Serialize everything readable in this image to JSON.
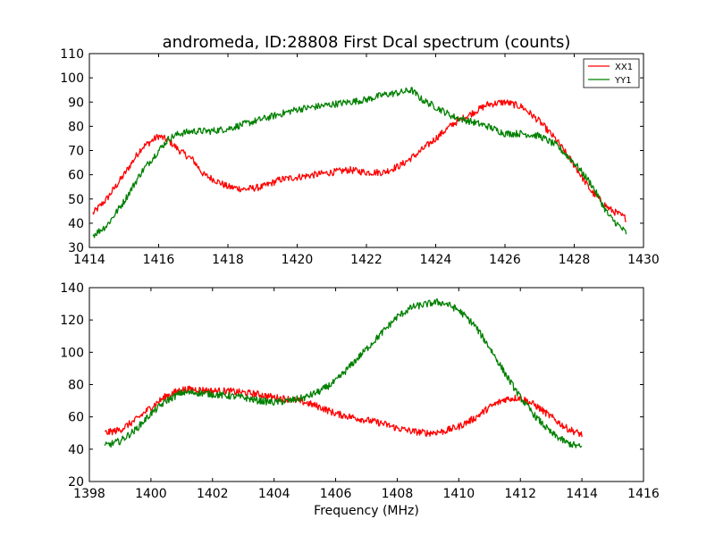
{
  "title": "andromeda, ID:28808 First Dcal spectrum (counts)",
  "chart_data": [
    {
      "type": "line",
      "title": "andromeda, ID:28808 First Dcal spectrum (counts)",
      "xlabel": "",
      "ylabel": "",
      "xlim": [
        1414,
        1430
      ],
      "ylim": [
        30,
        110
      ],
      "xticks": [
        "1414",
        "1416",
        "1418",
        "1420",
        "1422",
        "1424",
        "1426",
        "1428",
        "1430"
      ],
      "yticks": [
        "30",
        "40",
        "50",
        "60",
        "70",
        "80",
        "90",
        "100",
        "110"
      ],
      "grid": false,
      "legend": "top-right",
      "series": [
        {
          "name": "XX1",
          "color": "#ff0000",
          "x": [
            1414.1,
            1414.5,
            1415.0,
            1415.5,
            1416.0,
            1416.3,
            1416.6,
            1417.0,
            1417.3,
            1417.6,
            1418.0,
            1418.5,
            1419.0,
            1419.5,
            1420.0,
            1420.5,
            1421.0,
            1421.5,
            1422.0,
            1422.5,
            1423.0,
            1423.5,
            1424.0,
            1424.5,
            1425.0,
            1425.5,
            1426.0,
            1426.5,
            1427.0,
            1427.5,
            1428.0,
            1428.5,
            1429.0,
            1429.5
          ],
          "y": [
            44,
            50,
            60,
            71,
            76,
            74,
            70,
            66,
            60,
            58,
            55,
            54,
            55,
            58,
            59,
            60,
            61,
            62,
            61,
            61,
            64,
            69,
            75,
            81,
            85,
            89,
            90,
            88,
            82,
            74,
            64,
            53,
            46,
            42
          ]
        },
        {
          "name": "YY1",
          "color": "#008000",
          "x": [
            1414.1,
            1414.5,
            1415.0,
            1415.5,
            1416.0,
            1416.3,
            1416.6,
            1417.0,
            1417.5,
            1418.0,
            1418.5,
            1419.0,
            1419.5,
            1420.0,
            1420.5,
            1421.0,
            1421.5,
            1422.0,
            1422.5,
            1423.0,
            1423.3,
            1423.6,
            1424.0,
            1424.5,
            1425.0,
            1425.5,
            1426.0,
            1426.5,
            1427.0,
            1427.5,
            1428.0,
            1428.5,
            1429.0,
            1429.5
          ],
          "y": [
            35,
            39,
            49,
            61,
            70,
            75,
            77,
            78,
            78,
            79,
            81,
            83,
            85,
            87,
            88,
            89,
            90,
            91,
            93,
            94,
            95,
            91,
            88,
            84,
            82,
            80,
            77,
            77,
            76,
            72,
            65,
            56,
            43,
            36
          ]
        }
      ]
    },
    {
      "type": "line",
      "title": "",
      "xlabel": "Frequency (MHz)",
      "ylabel": "",
      "xlim": [
        1398,
        1416
      ],
      "ylim": [
        20,
        140
      ],
      "xticks": [
        "1398",
        "1400",
        "1402",
        "1404",
        "1406",
        "1408",
        "1410",
        "1412",
        "1414",
        "1416"
      ],
      "yticks": [
        "20",
        "40",
        "60",
        "80",
        "100",
        "120",
        "140"
      ],
      "grid": false,
      "series": [
        {
          "name": "XX1",
          "color": "#ff0000",
          "x": [
            1398.5,
            1399.0,
            1399.5,
            1400.0,
            1400.5,
            1401.0,
            1401.5,
            1402.0,
            1402.5,
            1403.0,
            1403.5,
            1404.0,
            1404.5,
            1405.0,
            1405.5,
            1406.0,
            1406.5,
            1407.0,
            1407.5,
            1408.0,
            1408.5,
            1409.0,
            1409.5,
            1410.0,
            1410.5,
            1411.0,
            1411.5,
            1412.0,
            1412.5,
            1413.0,
            1413.5,
            1414.0
          ],
          "y": [
            50,
            52,
            58,
            66,
            73,
            77,
            77,
            76,
            76,
            75,
            74,
            72,
            71,
            69,
            66,
            62,
            60,
            58,
            56,
            53,
            51,
            50,
            51,
            54,
            59,
            66,
            71,
            72,
            67,
            60,
            53,
            49
          ]
        },
        {
          "name": "YY1",
          "color": "#008000",
          "x": [
            1398.5,
            1399.0,
            1399.5,
            1400.0,
            1400.5,
            1401.0,
            1401.5,
            1402.0,
            1402.5,
            1403.0,
            1403.5,
            1404.0,
            1404.5,
            1405.0,
            1405.5,
            1406.0,
            1406.5,
            1407.0,
            1407.5,
            1408.0,
            1408.5,
            1409.0,
            1409.3,
            1409.6,
            1410.0,
            1410.5,
            1411.0,
            1411.5,
            1412.0,
            1412.5,
            1413.0,
            1413.5,
            1414.0
          ],
          "y": [
            42,
            45,
            52,
            62,
            70,
            75,
            75,
            74,
            73,
            72,
            70,
            69,
            70,
            72,
            76,
            82,
            92,
            102,
            112,
            122,
            128,
            130,
            131,
            130,
            126,
            117,
            103,
            87,
            72,
            60,
            50,
            44,
            41
          ]
        }
      ]
    }
  ]
}
